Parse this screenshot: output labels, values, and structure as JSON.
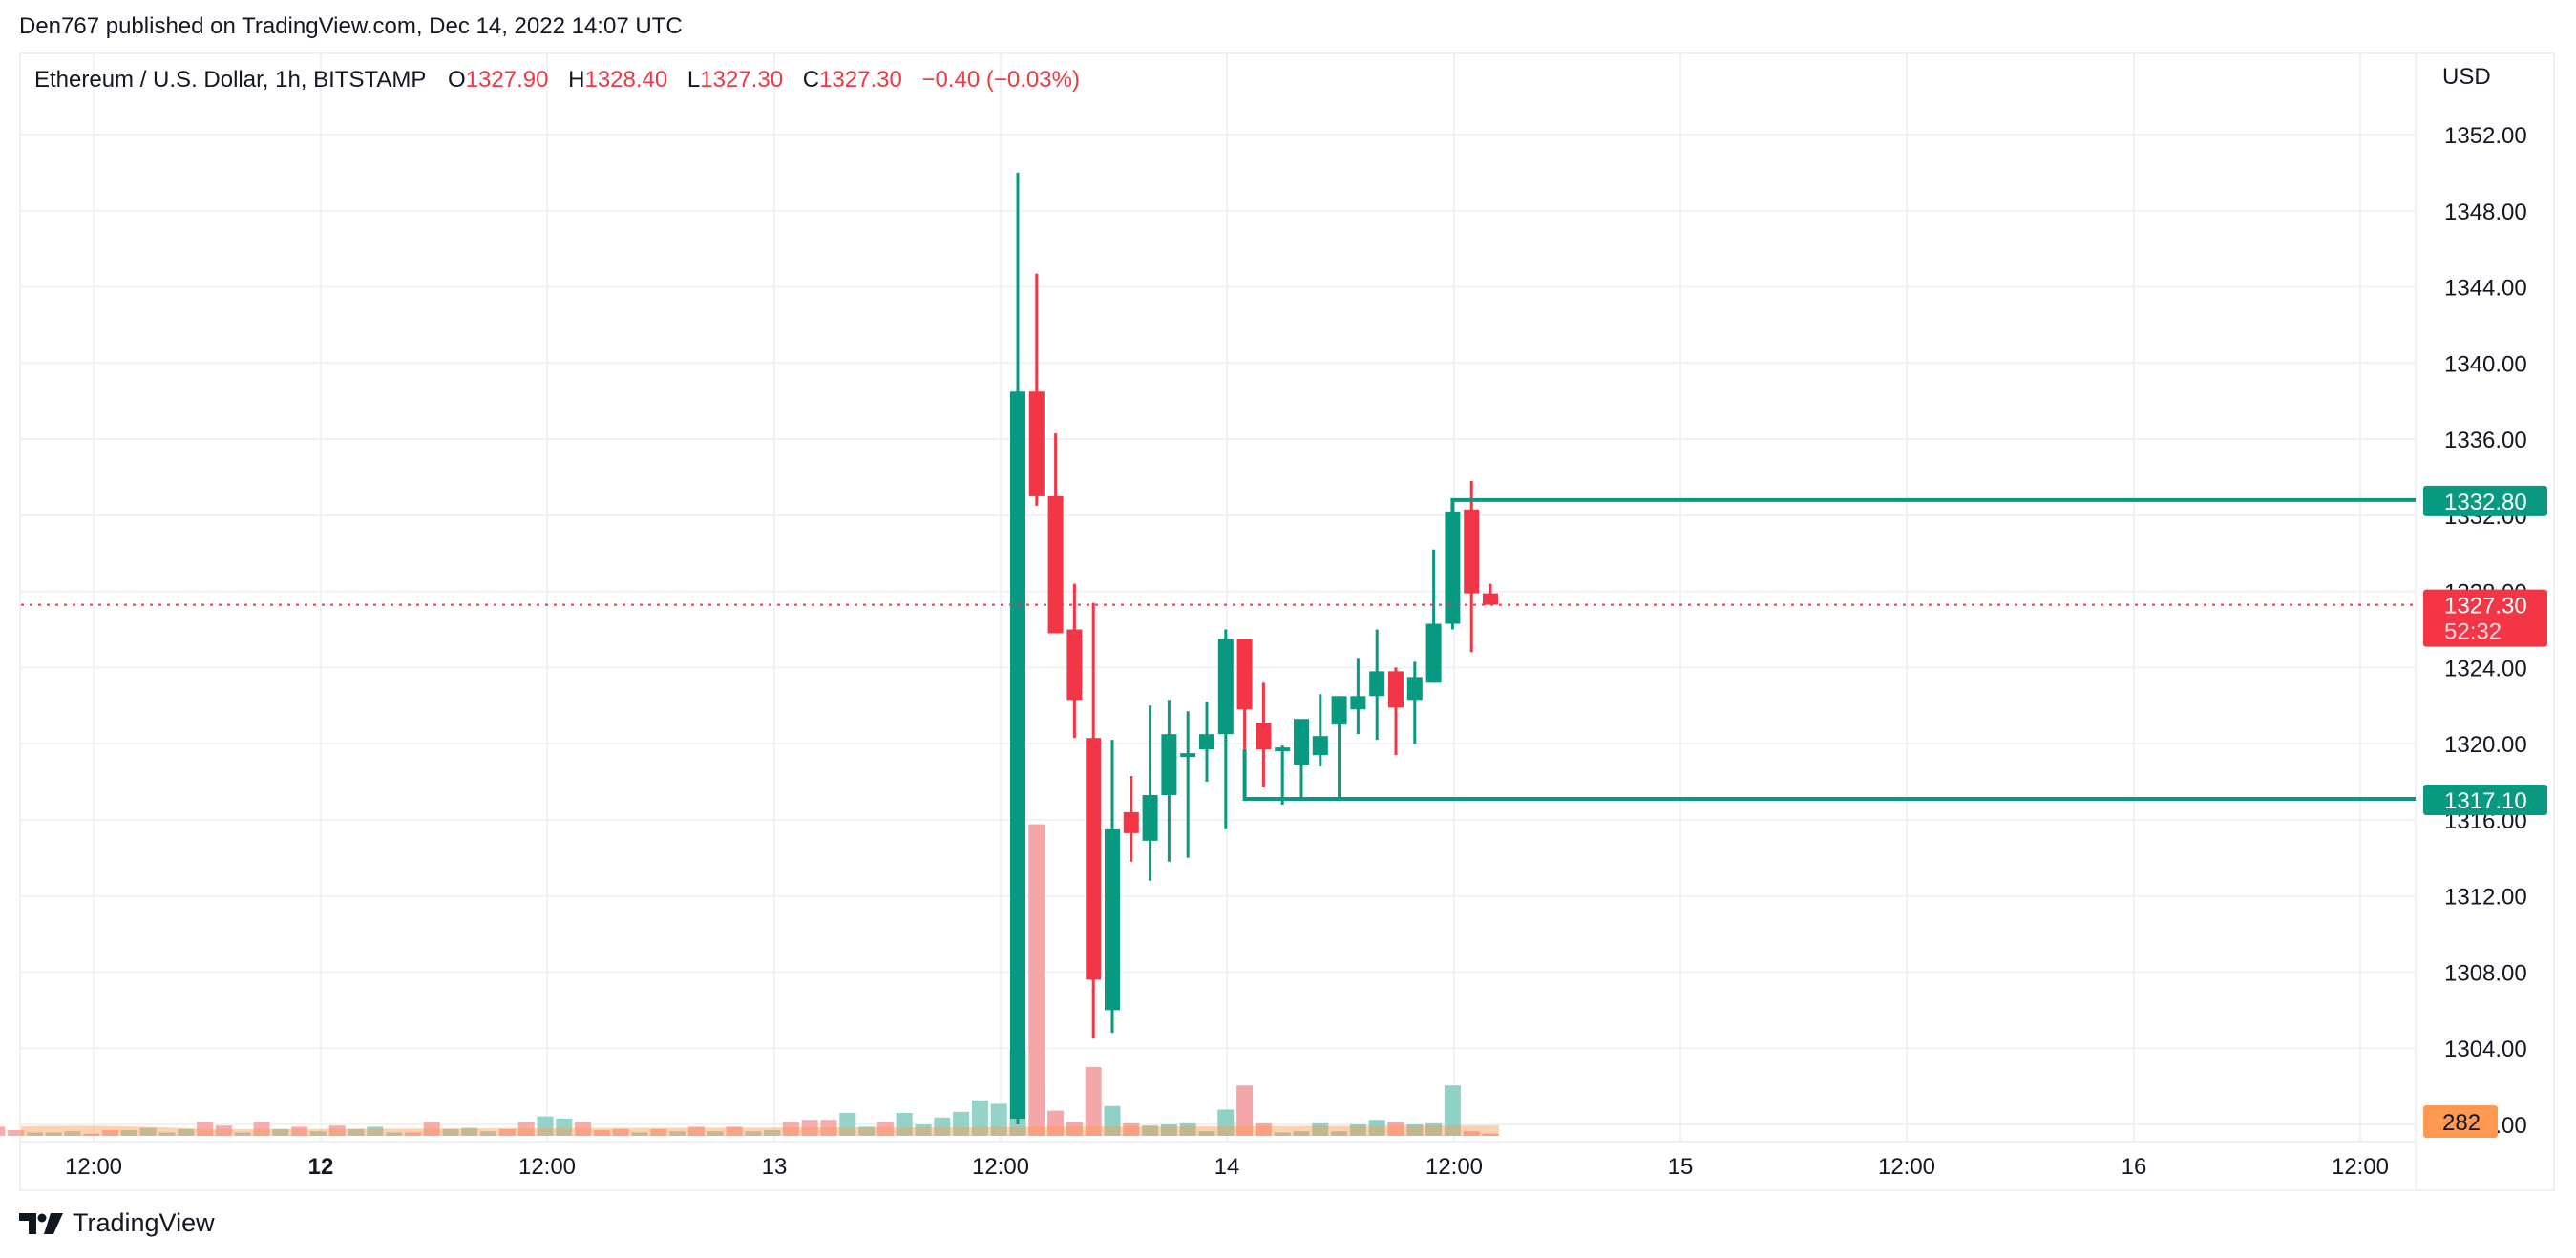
{
  "header": {
    "published": "Den767 published on TradingView.com, Dec 14, 2022 14:07 UTC"
  },
  "legend": {
    "symbol": "Ethereum / U.S. Dollar, 1h, BITSTAMP",
    "open_label": "O",
    "open": "1327.90",
    "high_label": "H",
    "high": "1328.40",
    "low_label": "L",
    "low": "1327.30",
    "close_label": "C",
    "close": "1327.30",
    "change": "−0.40 (−0.03%)"
  },
  "price_axis": {
    "currency": "USD",
    "ticks": [
      "1352.00",
      "1348.00",
      "1344.00",
      "1340.00",
      "1336.00",
      "1332.00",
      "1328.00",
      "1324.00",
      "1320.00",
      "1316.00",
      "1312.00",
      "1308.00",
      "1304.00",
      "1300.00"
    ]
  },
  "time_axis": {
    "ticks": [
      {
        "label": "12:00",
        "bold": false
      },
      {
        "label": "12",
        "bold": true
      },
      {
        "label": "12:00",
        "bold": false
      },
      {
        "label": "13",
        "bold": false
      },
      {
        "label": "12:00",
        "bold": false
      },
      {
        "label": "14",
        "bold": false
      },
      {
        "label": "12:00",
        "bold": false
      },
      {
        "label": "15",
        "bold": false
      },
      {
        "label": "12:00",
        "bold": false
      },
      {
        "label": "16",
        "bold": false
      },
      {
        "label": "12:00",
        "bold": false
      }
    ]
  },
  "tags": {
    "resistance": "1332.80",
    "last_price": "1327.30",
    "countdown": "52:32",
    "support": "1317.10",
    "volume": "282"
  },
  "colors": {
    "up": "#089981",
    "down": "#f23645",
    "volume_up": "#8fd1c7",
    "volume_down": "#f5a6a8",
    "volume_ma": "#ff9850",
    "grid": "#f0f1f4",
    "level": "#089981"
  },
  "footer": {
    "brand": "TradingView"
  },
  "chart_data": {
    "type": "candlestick",
    "title": "Ethereum / U.S. Dollar, 1h, BITSTAMP",
    "ylabel": "USD",
    "ylim": [
      1300,
      1354
    ],
    "x_ticks": [
      "12:00",
      "12",
      "12:00",
      "13",
      "12:00",
      "14",
      "12:00",
      "15",
      "12:00",
      "16",
      "12:00"
    ],
    "levels": [
      {
        "name": "resistance",
        "value": 1332.8
      },
      {
        "name": "support",
        "value": 1317.1
      }
    ],
    "last": {
      "open": 1327.9,
      "high": 1328.4,
      "low": 1327.3,
      "close": 1327.3,
      "change": -0.4,
      "change_pct": -0.03
    },
    "candles": [
      {
        "o": 1300.3,
        "h": 1350.0,
        "l": 1300.0,
        "c": 1338.5
      },
      {
        "o": 1338.5,
        "h": 1344.7,
        "l": 1332.5,
        "c": 1333.0
      },
      {
        "o": 1333.0,
        "h": 1336.3,
        "l": 1325.8,
        "c": 1325.8
      },
      {
        "o": 1326.0,
        "h": 1328.4,
        "l": 1320.3,
        "c": 1322.3
      },
      {
        "o": 1320.3,
        "h": 1327.4,
        "l": 1304.5,
        "c": 1307.6
      },
      {
        "o": 1306.0,
        "h": 1320.2,
        "l": 1304.8,
        "c": 1315.5
      },
      {
        "o": 1316.4,
        "h": 1318.3,
        "l": 1313.8,
        "c": 1315.3
      },
      {
        "o": 1314.9,
        "h": 1322.0,
        "l": 1312.8,
        "c": 1317.3
      },
      {
        "o": 1317.3,
        "h": 1322.3,
        "l": 1313.8,
        "c": 1320.5
      },
      {
        "o": 1319.3,
        "h": 1321.7,
        "l": 1314.0,
        "c": 1319.5
      },
      {
        "o": 1319.7,
        "h": 1322.2,
        "l": 1318.0,
        "c": 1320.5
      },
      {
        "o": 1320.5,
        "h": 1326.0,
        "l": 1315.5,
        "c": 1325.5
      },
      {
        "o": 1325.5,
        "h": 1325.5,
        "l": 1317.1,
        "c": 1321.8
      },
      {
        "o": 1321.1,
        "h": 1323.2,
        "l": 1317.7,
        "c": 1319.7
      },
      {
        "o": 1319.7,
        "h": 1319.9,
        "l": 1316.8,
        "c": 1319.8
      },
      {
        "o": 1318.9,
        "h": 1320.1,
        "l": 1317.1,
        "c": 1321.3
      },
      {
        "o": 1319.4,
        "h": 1322.6,
        "l": 1318.8,
        "c": 1320.4
      },
      {
        "o": 1321.0,
        "h": 1322.4,
        "l": 1317.1,
        "c": 1322.5
      },
      {
        "o": 1321.8,
        "h": 1324.5,
        "l": 1320.5,
        "c": 1322.5
      },
      {
        "o": 1322.5,
        "h": 1326.0,
        "l": 1320.2,
        "c": 1323.8
      },
      {
        "o": 1323.8,
        "h": 1324.0,
        "l": 1319.4,
        "c": 1321.9
      },
      {
        "o": 1322.3,
        "h": 1324.3,
        "l": 1320.0,
        "c": 1323.5
      },
      {
        "o": 1323.2,
        "h": 1330.2,
        "l": 1323.2,
        "c": 1326.3
      },
      {
        "o": 1326.3,
        "h": 1332.8,
        "l": 1326.0,
        "c": 1332.2
      },
      {
        "o": 1332.3,
        "h": 1333.8,
        "l": 1324.8,
        "c": 1327.9
      },
      {
        "o": 1327.9,
        "h": 1328.4,
        "l": 1327.3,
        "c": 1327.3
      }
    ]
  }
}
